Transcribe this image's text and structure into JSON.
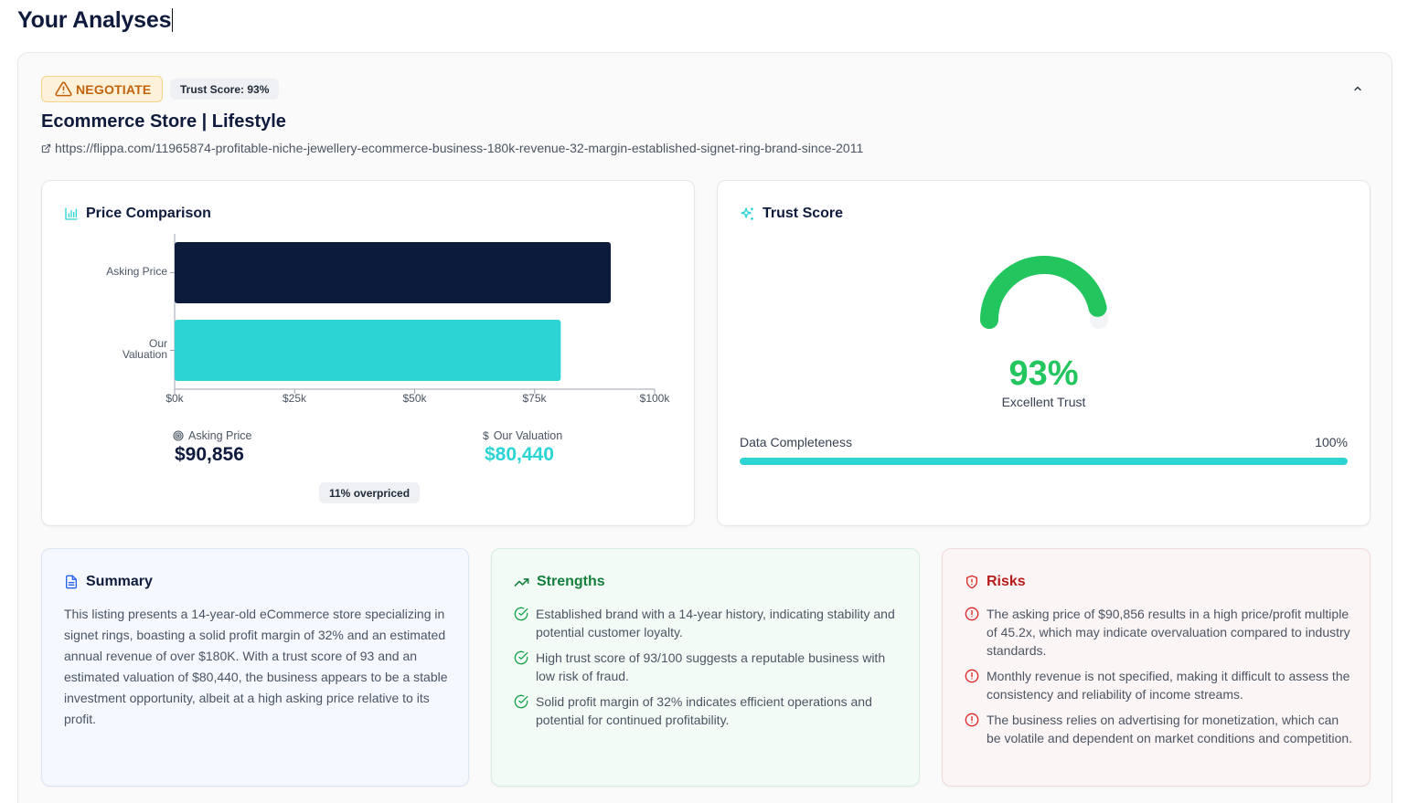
{
  "page": {
    "title": "Your Analyses"
  },
  "analysis": {
    "recommendation": "NEGOTIATE",
    "trust_badge": "Trust Score: 93%",
    "title": "Ecommerce Store | Lifestyle",
    "url": "https://flippa.com/11965874-profitable-niche-jewellery-ecommerce-business-180k-revenue-32-margin-established-signet-ring-brand-since-2011",
    "colors": {
      "recommendation": "#c2620a",
      "asking_bar": "#0c1a3c",
      "valuation_bar": "#2dd4d4",
      "trust_green": "#22c55e"
    }
  },
  "price_comparison": {
    "title": "Price Comparison",
    "asking_label": "Asking Price",
    "asking_value": "$90,856",
    "valuation_label": "Our Valuation",
    "valuation_value": "$80,440",
    "overpriced_badge": "11% overpriced"
  },
  "chart_data": {
    "type": "bar",
    "orientation": "horizontal",
    "categories": [
      "Asking Price",
      "Our Valuation"
    ],
    "values": [
      90856,
      80440
    ],
    "xlim": [
      0,
      100000
    ],
    "xticks": [
      "$0k",
      "$25k",
      "$50k",
      "$75k",
      "$100k"
    ],
    "grid": false
  },
  "trust_score": {
    "title": "Trust Score",
    "score": 93,
    "score_text": "93%",
    "description": "Excellent Trust",
    "completeness_label": "Data Completeness",
    "completeness_text": "100%",
    "completeness_fraction": 1.0
  },
  "summary": {
    "title": "Summary",
    "text": "This listing presents a 14-year-old eCommerce store specializing in signet rings, boasting a solid profit margin of 32% and an estimated annual revenue of over $180K. With a trust score of 93 and an estimated valuation of $80,440, the business appears to be a stable investment opportunity, albeit at a high asking price relative to its profit."
  },
  "strengths": {
    "title": "Strengths",
    "items": [
      "Established brand with a 14-year history, indicating stability and potential customer loyalty.",
      "High trust score of 93/100 suggests a reputable business with low risk of fraud.",
      "Solid profit margin of 32% indicates efficient operations and potential for continued profitability."
    ]
  },
  "risks": {
    "title": "Risks",
    "items": [
      "The asking price of $90,856 results in a high price/profit multiple of 45.2x, which may indicate overvaluation compared to industry standards.",
      "Monthly revenue is not specified, making it difficult to assess the consistency and reliability of income streams.",
      "The business relies on advertising for monetization, which can be volatile and dependent on market conditions and competition."
    ]
  }
}
